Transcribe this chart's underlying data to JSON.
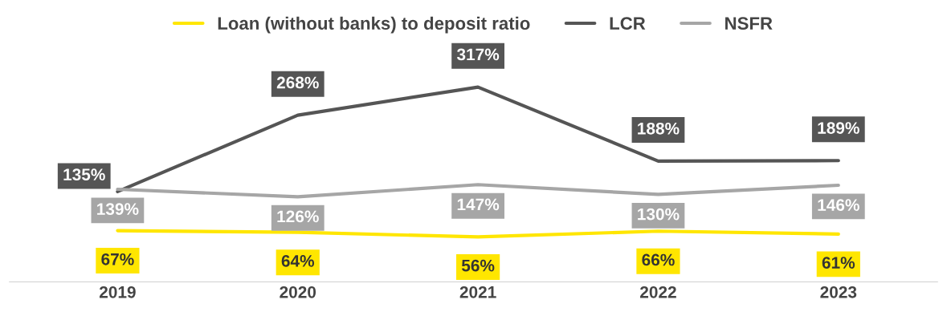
{
  "chart_data": {
    "type": "line",
    "categories": [
      "2019",
      "2020",
      "2021",
      "2022",
      "2023"
    ],
    "series": [
      {
        "name": "Loan (without banks) to deposit ratio",
        "color": "#ffe600",
        "values": [
          67,
          64,
          56,
          66,
          61
        ],
        "value_labels": [
          "67%",
          "64%",
          "56%",
          "66%",
          "61%"
        ]
      },
      {
        "name": "LCR",
        "color": "#555555",
        "values": [
          135,
          268,
          317,
          188,
          189
        ],
        "value_labels": [
          "135%",
          "268%",
          "317%",
          "188%",
          "189%"
        ]
      },
      {
        "name": "NSFR",
        "color": "#a6a6a6",
        "values": [
          139,
          126,
          147,
          130,
          146
        ],
        "value_labels": [
          "139%",
          "126%",
          "147%",
          "130%",
          "146%"
        ]
      }
    ],
    "tick_labels": "x",
    "grid": false,
    "legend": "top",
    "marker": "none",
    "line_style": "solid"
  }
}
